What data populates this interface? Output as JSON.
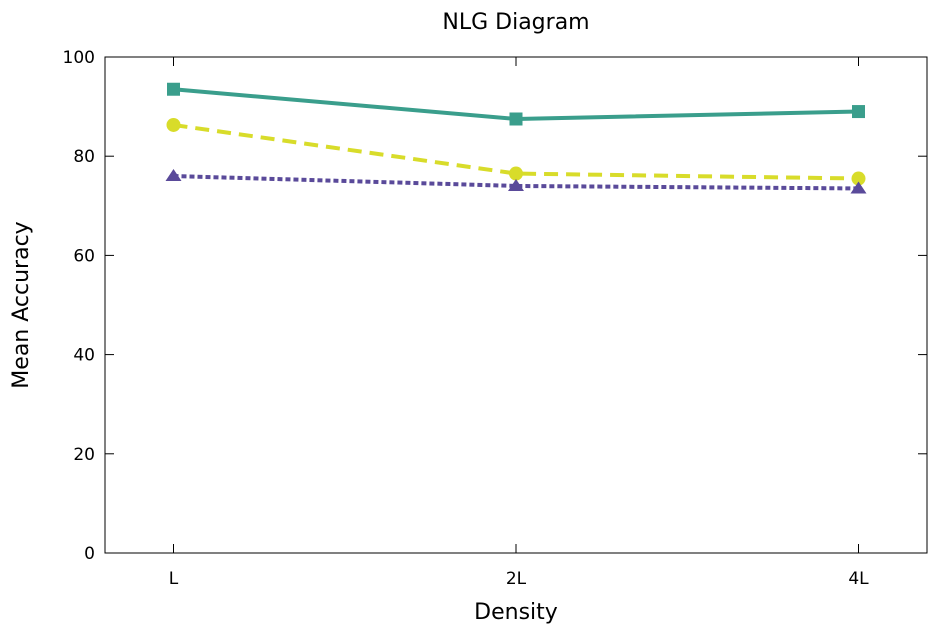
{
  "chart_data": {
    "type": "line",
    "title": "NLG Diagram",
    "xlabel": "Density",
    "ylabel": "Mean Accuracy",
    "categories": [
      "L",
      "2L",
      "4L"
    ],
    "ylim": [
      0,
      100
    ],
    "yticks": [
      0,
      20,
      40,
      60,
      80,
      100
    ],
    "grid": false,
    "legend": "none",
    "series": [
      {
        "values": [
          93.5,
          87.5,
          89.0
        ],
        "color": "#3a9e8c",
        "marker": "square",
        "line_style": "solid"
      },
      {
        "values": [
          86.3,
          76.5,
          75.5
        ],
        "color": "#d8dc2a",
        "marker": "circle",
        "line_style": "dashed"
      },
      {
        "values": [
          76.0,
          74.0,
          73.5
        ],
        "color": "#5a4a9a",
        "marker": "triangle",
        "line_style": "dotted"
      }
    ]
  }
}
